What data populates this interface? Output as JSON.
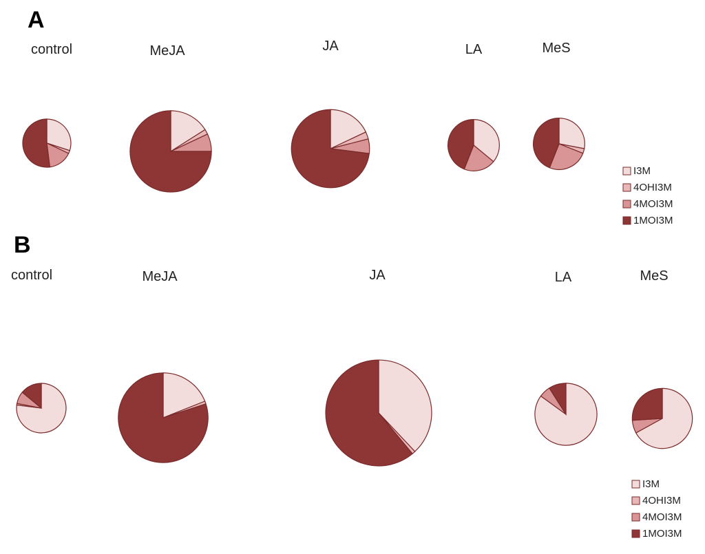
{
  "chart_data": [
    {
      "type": "pie",
      "panel": "A",
      "series_names": [
        "I3M",
        "4OHI3M",
        "4MOI3M",
        "1MOI3M"
      ],
      "colors": [
        "#f2dcdc",
        "#e8b7b7",
        "#d99595",
        "#8e3535"
      ],
      "legend": {
        "placement": "right",
        "entries": [
          "I3M",
          "4OHI3M",
          "4MOI3M",
          "1MOI3M"
        ]
      },
      "pies": [
        {
          "label": "control",
          "relative_size": 1.0,
          "values": [
            30,
            2,
            16,
            52
          ]
        },
        {
          "label": "MeJA",
          "relative_size": 2.85,
          "values": [
            16,
            2,
            7,
            75
          ]
        },
        {
          "label": "JA",
          "relative_size": 2.63,
          "values": [
            18,
            3,
            6,
            73
          ]
        },
        {
          "label": "LA",
          "relative_size": 1.14,
          "values": [
            36,
            0,
            20,
            44
          ]
        },
        {
          "label": "MeS",
          "relative_size": 1.14,
          "values": [
            28,
            3,
            25,
            44
          ]
        }
      ]
    },
    {
      "type": "pie",
      "panel": "B",
      "series_names": [
        "I3M",
        "4OHI3M",
        "4MOI3M",
        "1MOI3M"
      ],
      "colors": [
        "#f2dcdc",
        "#e8b7b7",
        "#d99595",
        "#8e3535"
      ],
      "legend": {
        "placement": "bottom-right",
        "entries": [
          "I3M",
          "4OHI3M",
          "4MOI3M",
          "1MOI3M"
        ]
      },
      "pies": [
        {
          "label": "control",
          "relative_size": 1.0,
          "values": [
            77,
            1,
            8,
            14
          ]
        },
        {
          "label": "MeJA",
          "relative_size": 3.28,
          "values": [
            19,
            1,
            0,
            80
          ]
        },
        {
          "label": "JA",
          "relative_size": 4.57,
          "values": [
            38,
            1,
            0,
            61
          ]
        },
        {
          "label": "LA",
          "relative_size": 1.57,
          "values": [
            85,
            0,
            6,
            9
          ]
        },
        {
          "label": "MeS",
          "relative_size": 1.47,
          "values": [
            67,
            0,
            7,
            26
          ]
        }
      ]
    }
  ]
}
